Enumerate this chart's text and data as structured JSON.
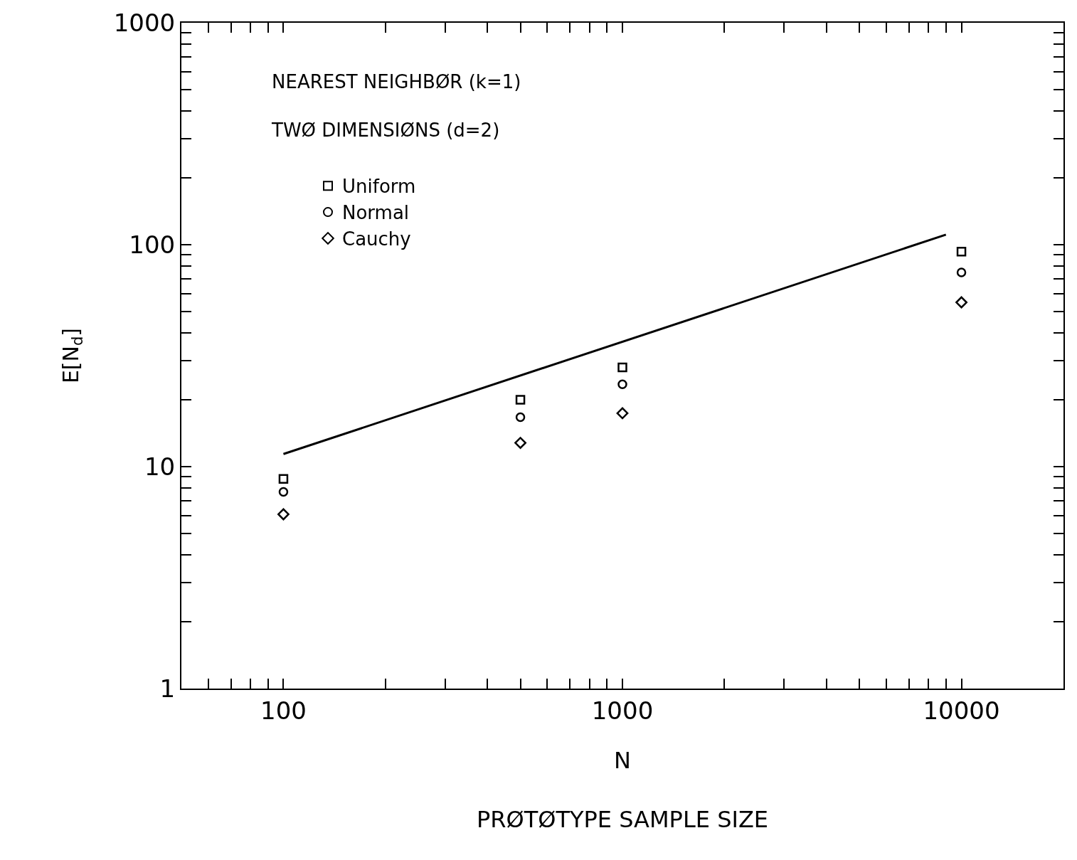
{
  "chart_data": {
    "type": "scatter",
    "xlabel": "N\nPRØTØTYPE SAMPLE SIZE",
    "ylabel": "E[N$_{d}$]",
    "log": "xy",
    "legend": "top left",
    "legend_title": "NEAREST NEIGHBØR (k=1)\nTWØ DIMENSIØNS (d=2)",
    "xlim": [
      50,
      20000
    ],
    "ylim": [
      1,
      1000
    ],
    "xticks": [
      {
        "value": 50,
        "label": null
      },
      {
        "value": 60,
        "label": null
      },
      {
        "value": 70,
        "label": null
      },
      {
        "value": 80,
        "label": null
      },
      {
        "value": 90,
        "label": null
      },
      100,
      {
        "value": 200,
        "label": null
      },
      {
        "value": 300,
        "label": null
      },
      {
        "value": 400,
        "label": null
      },
      {
        "value": 500,
        "label": null
      },
      {
        "value": 600,
        "label": null
      },
      {
        "value": 700,
        "label": null
      },
      {
        "value": 800,
        "label": null
      },
      {
        "value": 900,
        "label": null
      },
      1000,
      {
        "value": 2000,
        "label": null
      },
      {
        "value": 3000,
        "label": null
      },
      {
        "value": 4000,
        "label": null
      },
      {
        "value": 5000,
        "label": null
      },
      {
        "value": 6000,
        "label": null
      },
      {
        "value": 7000,
        "label": null
      },
      {
        "value": 8000,
        "label": null
      },
      {
        "value": 9000,
        "label": null
      },
      10000,
      {
        "value": 20000,
        "label": null
      }
    ],
    "yticks": [
      1,
      {
        "value": 2,
        "label": null
      },
      {
        "value": 3,
        "label": null
      },
      {
        "value": 4,
        "label": null
      },
      {
        "value": 5,
        "label": null
      },
      {
        "value": 6,
        "label": null
      },
      {
        "value": 7,
        "label": null
      },
      {
        "value": 8,
        "label": null
      },
      {
        "value": 9,
        "label": null
      },
      10,
      {
        "value": 20,
        "label": null
      },
      {
        "value": 30,
        "label": null
      },
      {
        "value": 40,
        "label": null
      },
      {
        "value": 50,
        "label": null
      },
      {
        "value": 60,
        "label": null
      },
      {
        "value": 70,
        "label": null
      },
      {
        "value": 80,
        "label": null
      },
      {
        "value": 90,
        "label": null
      },
      100,
      {
        "value": 200,
        "label": null
      },
      {
        "value": 300,
        "label": null
      },
      {
        "value": 400,
        "label": null
      },
      {
        "value": 500,
        "label": null
      },
      {
        "value": 600,
        "label": null
      },
      {
        "value": 700,
        "label": null
      },
      {
        "value": 800,
        "label": null
      },
      {
        "value": 900,
        "label": null
      },
      1000
    ],
    "x": [
      100,
      500,
      1000,
      10000
    ],
    "series": [
      {
        "name": "Uniform",
        "color": "#000000",
        "marker": "square",
        "values": [
          8.8,
          20,
          28,
          93
        ]
      },
      {
        "name": "Normal",
        "color": "#000000",
        "marker": "circle",
        "values": [
          7.7,
          16.7,
          23.5,
          75
        ]
      },
      {
        "name": "Cauchy",
        "color": "#000000",
        "marker": "diamond",
        "values": [
          6.1,
          12.8,
          17.4,
          55
        ]
      },
      {
        "type": "line",
        "color": "#000000",
        "marker": "none",
        "line_style": "solid",
        "x": [
          100,
          9000
        ],
        "values": [
          11.4,
          111
        ]
      }
    ]
  }
}
